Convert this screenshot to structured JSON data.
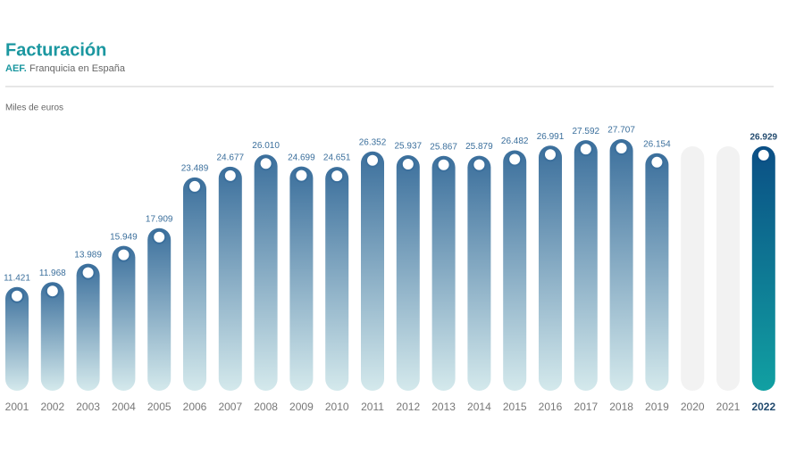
{
  "chart_data": {
    "type": "bar",
    "title": "Facturación",
    "subtitle_source": "AEF.",
    "subtitle": "Franquicia en España",
    "y_label": "Miles de euros",
    "categories": [
      "2001",
      "2002",
      "2003",
      "2004",
      "2005",
      "2006",
      "2007",
      "2008",
      "2009",
      "2010",
      "2011",
      "2012",
      "2013",
      "2014",
      "2015",
      "2016",
      "2017",
      "2018",
      "2019",
      "2020",
      "2021",
      "2022"
    ],
    "values": [
      11421,
      11968,
      13989,
      15949,
      17909,
      23489,
      24677,
      26010,
      24699,
      24651,
      26352,
      25937,
      25867,
      25879,
      26482,
      26991,
      27592,
      27707,
      26154,
      null,
      null,
      26929
    ],
    "value_labels": [
      "11.421",
      "11.968",
      "13.989",
      "15.949",
      "17.909",
      "23.489",
      "24.677",
      "26.010",
      "24.699",
      "24.651",
      "26.352",
      "25.937",
      "25.867",
      "25.879",
      "26.482",
      "26.991",
      "27.592",
      "27.707",
      "26.154",
      null,
      null,
      "26.929"
    ],
    "colors": [
      "#3b6f9c",
      "#3b6f9c",
      "#3b6f9c",
      "#3b6f9c",
      "#3b6f9c",
      "#3b6f9c",
      "#3b6f9c",
      "#3b6f9c",
      "#3b6f9c",
      "#3b6f9c",
      "#3b6f9c",
      "#3b6f9c",
      "#3b6f9c",
      "#3b6f9c",
      "#3b6f9c",
      "#3b6f9c",
      "#3b6f9c",
      "#3b6f9c",
      "#3b6f9c",
      "#f2f2f2",
      "#f2f2f2",
      "#0b4f85"
    ],
    "bottom_colors": [
      "#d4e9ec",
      "#d4e9ec",
      "#d4e9ec",
      "#d4e9ec",
      "#d4e9ec",
      "#d4e9ec",
      "#d4e9ec",
      "#d4e9ec",
      "#d4e9ec",
      "#d4e9ec",
      "#d4e9ec",
      "#d4e9ec",
      "#d4e9ec",
      "#d4e9ec",
      "#d4e9ec",
      "#d4e9ec",
      "#d4e9ec",
      "#d4e9ec",
      "#d4e9ec",
      "#f2f2f2",
      "#f2f2f2",
      "#11a0a2"
    ]
  }
}
